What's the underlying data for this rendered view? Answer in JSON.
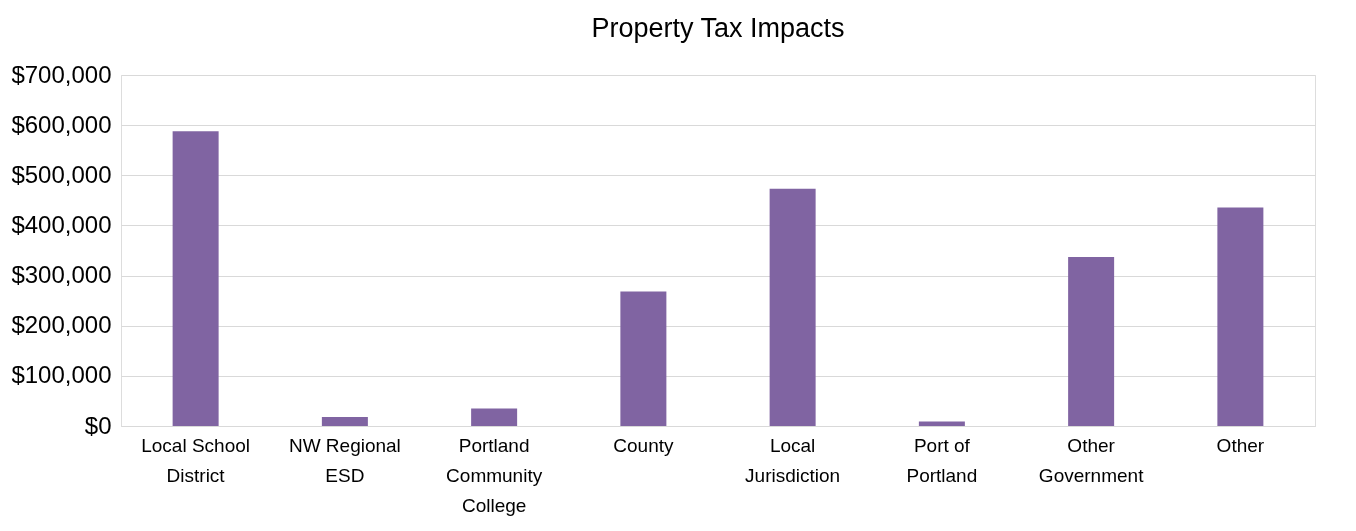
{
  "chart_data": {
    "type": "bar",
    "title": "Property Tax Impacts",
    "categories": [
      "Local School District",
      "NW Regional ESD",
      "Portland Community College",
      "County",
      "Local Jurisdiction",
      "Port of Portland",
      "Other Government",
      "Other"
    ],
    "values": [
      588000,
      18000,
      35000,
      268000,
      473000,
      9000,
      337000,
      436000
    ],
    "color": "#8064a2",
    "ylim": [
      0,
      700000
    ],
    "yticks": [
      {
        "value": 0,
        "label": "$0"
      },
      {
        "value": 100000,
        "label": "$100,000"
      },
      {
        "value": 200000,
        "label": "$200,000"
      },
      {
        "value": 300000,
        "label": "$300,000"
      },
      {
        "value": 400000,
        "label": "$400,000"
      },
      {
        "value": 500000,
        "label": "$500,000"
      },
      {
        "value": 600000,
        "label": "$600,000"
      },
      {
        "value": 700000,
        "label": "$700,000"
      }
    ],
    "grid": "y"
  }
}
